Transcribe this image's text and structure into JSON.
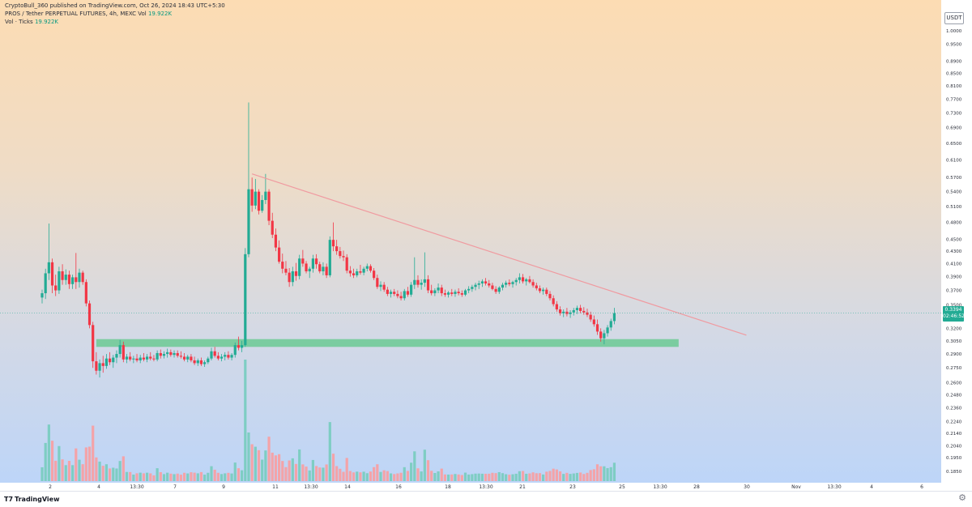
{
  "header": {
    "publish_line": "CryptoBull_360 published on TradingView.com, Oct 26, 2024 18:43 UTC+5:30",
    "symbol_line": "PROS / Tether PERPETUAL FUTURES, 4h, MEXC",
    "symbol_vol_label": "Vol",
    "symbol_vol_value": "19.922K",
    "vol_line_label": "Vol · Ticks",
    "vol_line_value": "19.922K"
  },
  "price_axis": {
    "currency": "USDT",
    "ticks": [
      "1.0000",
      "0.9500",
      "0.8900",
      "0.8500",
      "0.8100",
      "0.7700",
      "0.7300",
      "0.6900",
      "0.6500",
      "0.6100",
      "0.5700",
      "0.5400",
      "0.5100",
      "0.4800",
      "0.4500",
      "0.4300",
      "0.4100",
      "0.3900",
      "0.3700",
      "0.3500",
      "0.3200",
      "0.3050",
      "0.2900",
      "0.2750",
      "0.2600",
      "0.2480",
      "0.2360",
      "0.2240",
      "0.2140",
      "0.2040",
      "0.1950",
      "0.1850"
    ]
  },
  "last_price": {
    "value": "0.3394",
    "countdown": "02:46:52"
  },
  "time_axis": [
    "2",
    "4",
    "13:30",
    "7",
    "9",
    "11",
    "13:30",
    "14",
    "16",
    "18",
    "13:30",
    "21",
    "23",
    "25",
    "13:30",
    "28",
    "30",
    "Nov",
    "13:30",
    "4",
    "6"
  ],
  "footer": {
    "brand": "TradingView"
  },
  "colors": {
    "up": "#22ab94",
    "down": "#f23645",
    "trendline": "#f09aa0",
    "support": "#6cc993",
    "vol_up": "#7ecdc3",
    "vol_down": "#f4a3a8"
  },
  "icons": {
    "settings": "gear-icon",
    "logo": "tradingview-logo-icon"
  },
  "chart_data": {
    "type": "candlestick",
    "timeframe": "4h",
    "exchange": "MEXC",
    "scale": "log",
    "ylim": [
      0.185,
      1.0
    ],
    "grid": false,
    "trendline": {
      "from": {
        "candle": 62,
        "price": 0.578
      },
      "to": {
        "candle": 204,
        "price": 0.317
      }
    },
    "support_zone": {
      "from_candle": 16,
      "to_candle": 188,
      "low": 0.298,
      "high": 0.307
    },
    "candles": [
      [
        0.36,
        0.371,
        0.352,
        0.366
      ],
      [
        0.366,
        0.402,
        0.358,
        0.395
      ],
      [
        0.395,
        0.478,
        0.385,
        0.412
      ],
      [
        0.412,
        0.418,
        0.366,
        0.377
      ],
      [
        0.377,
        0.393,
        0.362,
        0.37
      ],
      [
        0.37,
        0.405,
        0.365,
        0.398
      ],
      [
        0.398,
        0.409,
        0.378,
        0.385
      ],
      [
        0.385,
        0.401,
        0.378,
        0.393
      ],
      [
        0.393,
        0.399,
        0.372,
        0.379
      ],
      [
        0.379,
        0.393,
        0.372,
        0.389
      ],
      [
        0.389,
        0.427,
        0.372,
        0.382
      ],
      [
        0.382,
        0.402,
        0.374,
        0.396
      ],
      [
        0.396,
        0.399,
        0.378,
        0.382
      ],
      [
        0.382,
        0.386,
        0.348,
        0.352
      ],
      [
        0.352,
        0.356,
        0.32,
        0.324
      ],
      [
        0.324,
        0.328,
        0.275,
        0.282
      ],
      [
        0.282,
        0.292,
        0.268,
        0.272
      ],
      [
        0.272,
        0.284,
        0.265,
        0.28
      ],
      [
        0.28,
        0.288,
        0.27,
        0.277
      ],
      [
        0.277,
        0.29,
        0.274,
        0.285
      ],
      [
        0.285,
        0.292,
        0.278,
        0.281
      ],
      [
        0.281,
        0.289,
        0.275,
        0.286
      ],
      [
        0.286,
        0.294,
        0.28,
        0.29
      ],
      [
        0.29,
        0.306,
        0.286,
        0.3
      ],
      [
        0.3,
        0.304,
        0.281,
        0.284
      ],
      [
        0.284,
        0.29,
        0.28,
        0.287
      ],
      [
        0.287,
        0.292,
        0.282,
        0.284
      ],
      [
        0.284,
        0.288,
        0.28,
        0.285
      ],
      [
        0.285,
        0.29,
        0.281,
        0.283
      ],
      [
        0.283,
        0.289,
        0.28,
        0.286
      ],
      [
        0.286,
        0.291,
        0.282,
        0.284
      ],
      [
        0.284,
        0.29,
        0.281,
        0.287
      ],
      [
        0.287,
        0.292,
        0.283,
        0.285
      ],
      [
        0.285,
        0.289,
        0.282,
        0.284
      ],
      [
        0.284,
        0.294,
        0.282,
        0.291
      ],
      [
        0.291,
        0.295,
        0.285,
        0.288
      ],
      [
        0.288,
        0.293,
        0.285,
        0.29
      ],
      [
        0.29,
        0.296,
        0.286,
        0.292
      ],
      [
        0.292,
        0.295,
        0.287,
        0.289
      ],
      [
        0.289,
        0.294,
        0.286,
        0.291
      ],
      [
        0.291,
        0.294,
        0.286,
        0.288
      ],
      [
        0.288,
        0.293,
        0.285,
        0.287
      ],
      [
        0.287,
        0.291,
        0.282,
        0.284
      ],
      [
        0.284,
        0.289,
        0.281,
        0.287
      ],
      [
        0.287,
        0.29,
        0.281,
        0.283
      ],
      [
        0.283,
        0.287,
        0.278,
        0.28
      ],
      [
        0.28,
        0.285,
        0.277,
        0.283
      ],
      [
        0.283,
        0.286,
        0.277,
        0.279
      ],
      [
        0.279,
        0.283,
        0.276,
        0.281
      ],
      [
        0.281,
        0.287,
        0.279,
        0.285
      ],
      [
        0.285,
        0.297,
        0.283,
        0.293
      ],
      [
        0.293,
        0.298,
        0.286,
        0.288
      ],
      [
        0.288,
        0.292,
        0.283,
        0.285
      ],
      [
        0.285,
        0.29,
        0.282,
        0.287
      ],
      [
        0.287,
        0.292,
        0.283,
        0.289
      ],
      [
        0.289,
        0.293,
        0.284,
        0.286
      ],
      [
        0.286,
        0.291,
        0.283,
        0.289
      ],
      [
        0.289,
        0.303,
        0.286,
        0.3
      ],
      [
        0.3,
        0.31,
        0.294,
        0.297
      ],
      [
        0.297,
        0.305,
        0.292,
        0.3
      ],
      [
        0.3,
        0.435,
        0.298,
        0.425
      ],
      [
        0.425,
        0.76,
        0.42,
        0.545
      ],
      [
        0.545,
        0.57,
        0.5,
        0.512
      ],
      [
        0.512,
        0.567,
        0.505,
        0.54
      ],
      [
        0.54,
        0.545,
        0.495,
        0.502
      ],
      [
        0.502,
        0.533,
        0.498,
        0.523
      ],
      [
        0.523,
        0.578,
        0.515,
        0.54
      ],
      [
        0.54,
        0.545,
        0.475,
        0.483
      ],
      [
        0.483,
        0.498,
        0.452,
        0.458
      ],
      [
        0.458,
        0.469,
        0.43,
        0.436
      ],
      [
        0.436,
        0.448,
        0.41,
        0.413
      ],
      [
        0.413,
        0.426,
        0.395,
        0.402
      ],
      [
        0.402,
        0.414,
        0.392,
        0.396
      ],
      [
        0.396,
        0.403,
        0.375,
        0.382
      ],
      [
        0.382,
        0.405,
        0.376,
        0.398
      ],
      [
        0.398,
        0.411,
        0.384,
        0.391
      ],
      [
        0.391,
        0.424,
        0.386,
        0.418
      ],
      [
        0.418,
        0.432,
        0.405,
        0.41
      ],
      [
        0.41,
        0.414,
        0.395,
        0.398
      ],
      [
        0.398,
        0.405,
        0.388,
        0.402
      ],
      [
        0.402,
        0.424,
        0.396,
        0.418
      ],
      [
        0.418,
        0.425,
        0.402,
        0.409
      ],
      [
        0.409,
        0.413,
        0.395,
        0.398
      ],
      [
        0.398,
        0.412,
        0.392,
        0.405
      ],
      [
        0.405,
        0.41,
        0.388,
        0.392
      ],
      [
        0.392,
        0.455,
        0.389,
        0.449
      ],
      [
        0.449,
        0.48,
        0.43,
        0.438
      ],
      [
        0.438,
        0.449,
        0.424,
        0.43
      ],
      [
        0.43,
        0.437,
        0.418,
        0.422
      ],
      [
        0.422,
        0.431,
        0.414,
        0.42
      ],
      [
        0.42,
        0.425,
        0.395,
        0.399
      ],
      [
        0.399,
        0.406,
        0.39,
        0.395
      ],
      [
        0.395,
        0.402,
        0.388,
        0.392
      ],
      [
        0.392,
        0.402,
        0.389,
        0.398
      ],
      [
        0.398,
        0.408,
        0.393,
        0.396
      ],
      [
        0.396,
        0.405,
        0.392,
        0.402
      ],
      [
        0.402,
        0.41,
        0.398,
        0.406
      ],
      [
        0.406,
        0.409,
        0.396,
        0.399
      ],
      [
        0.399,
        0.403,
        0.385,
        0.388
      ],
      [
        0.388,
        0.393,
        0.372,
        0.375
      ],
      [
        0.375,
        0.383,
        0.369,
        0.378
      ],
      [
        0.378,
        0.382,
        0.368,
        0.371
      ],
      [
        0.371,
        0.375,
        0.362,
        0.365
      ],
      [
        0.365,
        0.371,
        0.36,
        0.368
      ],
      [
        0.368,
        0.372,
        0.362,
        0.365
      ],
      [
        0.365,
        0.37,
        0.359,
        0.362
      ],
      [
        0.362,
        0.368,
        0.356,
        0.359
      ],
      [
        0.359,
        0.372,
        0.356,
        0.369
      ],
      [
        0.369,
        0.375,
        0.361,
        0.364
      ],
      [
        0.364,
        0.382,
        0.361,
        0.378
      ],
      [
        0.378,
        0.42,
        0.372,
        0.385
      ],
      [
        0.385,
        0.392,
        0.374,
        0.378
      ],
      [
        0.378,
        0.386,
        0.371,
        0.381
      ],
      [
        0.381,
        0.428,
        0.375,
        0.386
      ],
      [
        0.386,
        0.392,
        0.366,
        0.37
      ],
      [
        0.37,
        0.378,
        0.363,
        0.366
      ],
      [
        0.366,
        0.373,
        0.362,
        0.37
      ],
      [
        0.37,
        0.38,
        0.366,
        0.374
      ],
      [
        0.374,
        0.378,
        0.362,
        0.366
      ],
      [
        0.366,
        0.371,
        0.361,
        0.364
      ],
      [
        0.364,
        0.369,
        0.36,
        0.367
      ],
      [
        0.367,
        0.372,
        0.362,
        0.365
      ],
      [
        0.365,
        0.371,
        0.361,
        0.368
      ],
      [
        0.368,
        0.373,
        0.363,
        0.366
      ],
      [
        0.366,
        0.37,
        0.361,
        0.364
      ],
      [
        0.364,
        0.372,
        0.362,
        0.37
      ],
      [
        0.37,
        0.376,
        0.366,
        0.372
      ],
      [
        0.372,
        0.378,
        0.368,
        0.375
      ],
      [
        0.375,
        0.381,
        0.37,
        0.378
      ],
      [
        0.378,
        0.384,
        0.372,
        0.38
      ],
      [
        0.38,
        0.386,
        0.375,
        0.383
      ],
      [
        0.383,
        0.388,
        0.377,
        0.38
      ],
      [
        0.38,
        0.385,
        0.374,
        0.377
      ],
      [
        0.377,
        0.381,
        0.37,
        0.372
      ],
      [
        0.372,
        0.376,
        0.365,
        0.368
      ],
      [
        0.368,
        0.376,
        0.365,
        0.374
      ],
      [
        0.374,
        0.381,
        0.37,
        0.378
      ],
      [
        0.378,
        0.384,
        0.374,
        0.381
      ],
      [
        0.381,
        0.386,
        0.376,
        0.379
      ],
      [
        0.379,
        0.384,
        0.374,
        0.382
      ],
      [
        0.382,
        0.388,
        0.377,
        0.385
      ],
      [
        0.385,
        0.395,
        0.38,
        0.389
      ],
      [
        0.389,
        0.394,
        0.38,
        0.383
      ],
      [
        0.383,
        0.388,
        0.377,
        0.386
      ],
      [
        0.386,
        0.391,
        0.38,
        0.382
      ],
      [
        0.382,
        0.386,
        0.374,
        0.377
      ],
      [
        0.377,
        0.381,
        0.37,
        0.373
      ],
      [
        0.373,
        0.377,
        0.366,
        0.369
      ],
      [
        0.369,
        0.374,
        0.364,
        0.371
      ],
      [
        0.371,
        0.374,
        0.362,
        0.365
      ],
      [
        0.365,
        0.369,
        0.356,
        0.359
      ],
      [
        0.359,
        0.363,
        0.348,
        0.351
      ],
      [
        0.351,
        0.355,
        0.341,
        0.344
      ],
      [
        0.344,
        0.348,
        0.336,
        0.339
      ],
      [
        0.339,
        0.344,
        0.334,
        0.341
      ],
      [
        0.341,
        0.346,
        0.335,
        0.338
      ],
      [
        0.338,
        0.343,
        0.333,
        0.34
      ],
      [
        0.34,
        0.346,
        0.336,
        0.343
      ],
      [
        0.343,
        0.349,
        0.338,
        0.346
      ],
      [
        0.346,
        0.35,
        0.339,
        0.342
      ],
      [
        0.342,
        0.347,
        0.337,
        0.34
      ],
      [
        0.34,
        0.345,
        0.334,
        0.337
      ],
      [
        0.337,
        0.341,
        0.328,
        0.331
      ],
      [
        0.331,
        0.336,
        0.322,
        0.325
      ],
      [
        0.325,
        0.331,
        0.312,
        0.316
      ],
      [
        0.316,
        0.32,
        0.304,
        0.308
      ],
      [
        0.308,
        0.318,
        0.301,
        0.314
      ],
      [
        0.314,
        0.324,
        0.31,
        0.321
      ],
      [
        0.321,
        0.332,
        0.317,
        0.329
      ],
      [
        0.329,
        0.346,
        0.325,
        0.339
      ]
    ]
  }
}
